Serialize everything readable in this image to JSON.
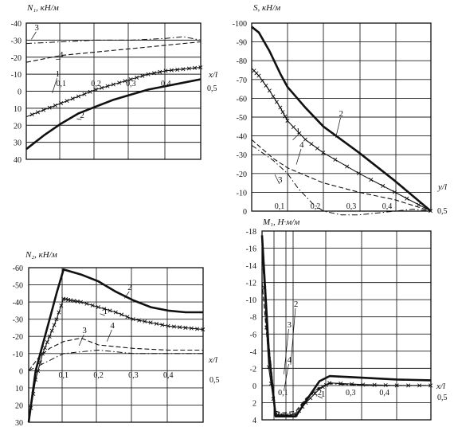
{
  "chart_data": [
    {
      "type": "line",
      "id": "n1",
      "title": "N₁, кН/м",
      "xlabel": "x/l",
      "x_ticks": [
        "0,1",
        "0,2",
        "0,3",
        "0,4",
        "0,5"
      ],
      "y_ticks": [
        "-40",
        "-30",
        "-20",
        "-10",
        "0",
        "10",
        "20",
        "30",
        "40"
      ],
      "ylim": [
        -40,
        40
      ],
      "xlim": [
        0,
        0.5
      ],
      "y_inverted": true,
      "grid": true,
      "series": [
        {
          "name": "1",
          "style": "solid-cross",
          "x": [
            0,
            0.05,
            0.1,
            0.15,
            0.2,
            0.25,
            0.3,
            0.35,
            0.4,
            0.45,
            0.5
          ],
          "y": [
            15,
            11,
            7,
            3,
            -1,
            -4,
            -7,
            -10,
            -12,
            -13,
            -14
          ]
        },
        {
          "name": "2",
          "style": "solid-bold",
          "x": [
            0,
            0.05,
            0.1,
            0.15,
            0.2,
            0.25,
            0.3,
            0.35,
            0.4,
            0.45,
            0.5
          ],
          "y": [
            34,
            26,
            19,
            13,
            9,
            5,
            2,
            -1,
            -3,
            -5,
            -7
          ]
        },
        {
          "name": "3",
          "style": "dashdot",
          "x": [
            0,
            0.1,
            0.2,
            0.3,
            0.4,
            0.45,
            0.5
          ],
          "y": [
            -28,
            -29,
            -30,
            -30,
            -31,
            -32,
            -30
          ]
        },
        {
          "name": "4",
          "style": "dashed",
          "x": [
            0,
            0.1,
            0.2,
            0.3,
            0.4,
            0.5
          ],
          "y": [
            -17,
            -21,
            -23,
            -25,
            -27,
            -29
          ]
        }
      ]
    },
    {
      "type": "line",
      "id": "s",
      "title": "S, кН/м",
      "xlabel": "y/l",
      "x_ticks": [
        "0,1",
        "0,2",
        "0,3",
        "0,4",
        "0,5"
      ],
      "y_ticks": [
        "-100",
        "-90",
        "-80",
        "-70",
        "-60",
        "-50",
        "-40",
        "-30",
        "-20",
        "-10",
        "0"
      ],
      "ylim": [
        -100,
        0
      ],
      "xlim": [
        0,
        0.5
      ],
      "y_inverted": true,
      "grid": true,
      "series": [
        {
          "name": "1",
          "style": "solid-cross",
          "x": [
            0,
            0.02,
            0.05,
            0.08,
            0.1,
            0.15,
            0.2,
            0.3,
            0.4,
            0.5
          ],
          "y": [
            -76,
            -72,
            -64,
            -55,
            -48,
            -38,
            -31,
            -20,
            -10,
            0
          ]
        },
        {
          "name": "2",
          "style": "solid-bold",
          "x": [
            0,
            0.02,
            0.05,
            0.08,
            0.1,
            0.15,
            0.2,
            0.3,
            0.4,
            0.5
          ],
          "y": [
            -98,
            -95,
            -85,
            -73,
            -66,
            -55,
            -45,
            -31,
            -16,
            0
          ]
        },
        {
          "name": "3",
          "style": "dashdot",
          "x": [
            0,
            0.03,
            0.06,
            0.1,
            0.13,
            0.17,
            0.2,
            0.25,
            0.3,
            0.35,
            0.4,
            0.45,
            0.5
          ],
          "y": [
            -35,
            -31,
            -27,
            -20,
            -12,
            -4,
            0,
            2,
            2,
            1,
            0,
            -1,
            0
          ]
        },
        {
          "name": "4",
          "style": "dashed",
          "x": [
            0,
            0.03,
            0.06,
            0.1,
            0.15,
            0.2,
            0.3,
            0.4,
            0.5
          ],
          "y": [
            -38,
            -33,
            -28,
            -23,
            -19,
            -15,
            -10,
            -6,
            0
          ]
        }
      ]
    },
    {
      "type": "line",
      "id": "n2",
      "title": "N₂, кН/м",
      "xlabel": "x/l",
      "x_ticks": [
        "0,1",
        "0,2",
        "0,3",
        "0,4",
        "0,5"
      ],
      "y_ticks": [
        "-60",
        "-50",
        "-40",
        "-30",
        "-20",
        "-10",
        "0",
        "10",
        "20",
        "30"
      ],
      "ylim": [
        -60,
        30
      ],
      "xlim": [
        0,
        0.5
      ],
      "y_inverted": true,
      "grid": true,
      "series": [
        {
          "name": "1",
          "style": "solid-cross",
          "x": [
            0,
            0.02,
            0.04,
            0.06,
            0.08,
            0.1,
            0.12,
            0.15,
            0.2,
            0.25,
            0.3,
            0.35,
            0.4,
            0.45,
            0.5
          ],
          "y": [
            30,
            5,
            -10,
            -20,
            -30,
            -42,
            -41,
            -40,
            -37,
            -34,
            -30,
            -28,
            -26,
            -25,
            -24
          ]
        },
        {
          "name": "2",
          "style": "solid-bold",
          "x": [
            0,
            0.02,
            0.04,
            0.06,
            0.08,
            0.1,
            0.15,
            0.2,
            0.25,
            0.3,
            0.35,
            0.4,
            0.45,
            0.5
          ],
          "y": [
            30,
            0,
            -15,
            -30,
            -45,
            -59,
            -56,
            -52,
            -46,
            -41,
            -37,
            -35,
            -34,
            -34
          ]
        },
        {
          "name": "3",
          "style": "dashdot",
          "x": [
            0,
            0.03,
            0.06,
            0.1,
            0.15,
            0.2,
            0.3,
            0.4,
            0.5
          ],
          "y": [
            0,
            -3,
            -6,
            -10,
            -11,
            -12,
            -10,
            -10,
            -10
          ]
        },
        {
          "name": "4",
          "style": "dashed",
          "x": [
            0,
            0.03,
            0.06,
            0.1,
            0.15,
            0.2,
            0.3,
            0.4,
            0.5
          ],
          "y": [
            0,
            -8,
            -13,
            -17,
            -19,
            -15,
            -13,
            -12,
            -12
          ]
        }
      ]
    },
    {
      "type": "line",
      "id": "m1",
      "title": "M₁, Н·м/м",
      "xlabel": "x/l",
      "x_ticks": [
        "0,1",
        "0,2",
        "0,3",
        "0,4",
        "0,5"
      ],
      "y_ticks": [
        "-18",
        "-16",
        "-14",
        "-12",
        "-10",
        "-8",
        "-6",
        "-4",
        "-2",
        "0",
        "2",
        "4"
      ],
      "ylim": [
        -18,
        4
      ],
      "xlim": [
        0,
        0.5
      ],
      "y_inverted": true,
      "grid": true,
      "series": [
        {
          "name": "1",
          "style": "solid-cross",
          "x": [
            0,
            0.02,
            0.04,
            0.06,
            0.1,
            0.13,
            0.17,
            0.2,
            0.3,
            0.4,
            0.5
          ],
          "y": [
            -16,
            -2,
            3.4,
            3.5,
            3.4,
            2.0,
            0.4,
            -0.3,
            -0.1,
            0,
            0
          ]
        },
        {
          "name": "2",
          "style": "solid-bold",
          "x": [
            0,
            0.02,
            0.04,
            0.06,
            0.1,
            0.13,
            0.17,
            0.2,
            0.3,
            0.4,
            0.5
          ],
          "y": [
            -17.5,
            -4,
            3.6,
            3.6,
            3.6,
            1.8,
            -0.5,
            -1.1,
            -0.9,
            -0.7,
            -0.6
          ]
        },
        {
          "name": "3",
          "style": "dashdot",
          "x": [
            0,
            0.02,
            0.04,
            0.06,
            0.1,
            0.13,
            0.17,
            0.2,
            0.3,
            0.4,
            0.5
          ],
          "y": [
            -15,
            -5,
            3.0,
            3.4,
            3.2,
            1.6,
            0.3,
            -0.2,
            0,
            0,
            0
          ]
        },
        {
          "name": "4",
          "style": "dashed",
          "x": [
            0,
            0.02,
            0.04,
            0.06,
            0.1,
            0.13,
            0.17,
            0.2,
            0.3,
            0.4,
            0.5
          ],
          "y": [
            -12,
            -3,
            3.0,
            3.2,
            3.0,
            1.5,
            0.2,
            -0.3,
            0,
            0,
            0
          ]
        }
      ]
    }
  ]
}
